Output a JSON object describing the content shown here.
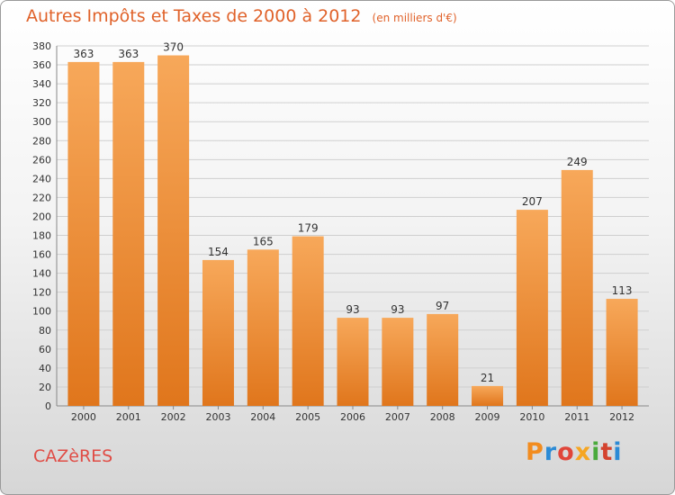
{
  "page": {
    "title": "Autres Impôts et Taxes de 2000 à 2012",
    "title_unit": "(en milliers d'€)",
    "commune": "CAZèRES",
    "logo": "Proxiti"
  },
  "colors": {
    "title": "#e0622a",
    "commune": "#e04c45",
    "bar_top": "#f7a85a",
    "bar_bottom": "#e0761c",
    "grid": "#cfcfcf"
  },
  "chart_data": {
    "type": "bar",
    "categories": [
      "2000",
      "2001",
      "2002",
      "2003",
      "2004",
      "2005",
      "2006",
      "2007",
      "2008",
      "2009",
      "2010",
      "2011",
      "2012"
    ],
    "values": [
      363,
      363,
      370,
      154,
      165,
      179,
      93,
      93,
      97,
      21,
      207,
      249,
      113
    ],
    "title": "Autres Impôts et Taxes de 2000 à 2012",
    "ylim": [
      0,
      380
    ],
    "ytick_step": 20,
    "grid": true,
    "legend": "none"
  }
}
